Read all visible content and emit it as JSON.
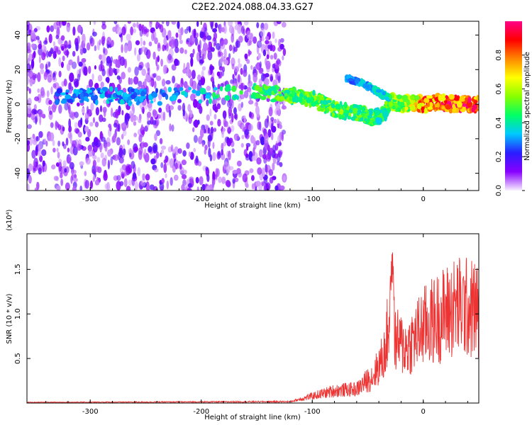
{
  "title": "C2E2.2024.088.04.33.G27",
  "chart_data": [
    {
      "type": "heatmap",
      "xlabel": "Height of straight line (km)",
      "ylabel": "Frequency (Hz)",
      "xlim": [
        -357,
        50
      ],
      "ylim": [
        -50,
        48
      ],
      "x_ticks": [
        -300,
        -200,
        -100,
        0
      ],
      "x_tick_labels": [
        "-300",
        "-200",
        "-100",
        "0"
      ],
      "y_ticks": [
        -40,
        -20,
        0,
        20,
        40
      ],
      "y_tick_labels": [
        "-40",
        "-20",
        "0",
        "20",
        "40"
      ],
      "colorbar": {
        "label": "Normalized spectral amplitude",
        "range": [
          0,
          1
        ],
        "ticks": [
          0.0,
          0.2,
          0.4,
          0.6,
          0.8
        ],
        "tick_labels": [
          "0.0",
          "0.2",
          "0.4",
          "0.6",
          "0.8"
        ],
        "colors": [
          "#f8f0ff",
          "#8800ff",
          "#2a1cff",
          "#00c8ff",
          "#00ff66",
          "#88ff00",
          "#ffff00",
          "#ff8800",
          "#ff0000",
          "#ff0088"
        ]
      },
      "ridge": [
        {
          "x": -330,
          "f": 5,
          "a": 0.3
        },
        {
          "x": -280,
          "f": 5,
          "a": 0.35
        },
        {
          "x": -250,
          "f": 4,
          "a": 0.3
        },
        {
          "x": -150,
          "f": 7,
          "a": 0.5
        },
        {
          "x": -120,
          "f": 5,
          "a": 0.55
        },
        {
          "x": -100,
          "f": 3,
          "a": 0.55
        },
        {
          "x": -80,
          "f": -3,
          "a": 0.55
        },
        {
          "x": -60,
          "f": -5,
          "a": 0.55
        },
        {
          "x": -45,
          "f": -8,
          "a": 0.5
        },
        {
          "x": -35,
          "f": -6,
          "a": 0.45
        },
        {
          "x": -30,
          "f": 2,
          "a": 0.6
        },
        {
          "x": -20,
          "f": 0,
          "a": 0.6
        },
        {
          "x": -10,
          "f": 1,
          "a": 0.65
        },
        {
          "x": 0,
          "f": 0,
          "a": 0.85
        },
        {
          "x": 15,
          "f": 1,
          "a": 0.9
        },
        {
          "x": 30,
          "f": 0,
          "a": 0.95
        },
        {
          "x": 50,
          "f": 0,
          "a": 0.95
        }
      ],
      "secondary_branch": [
        {
          "x": -70,
          "f": 15,
          "a": 0.3
        },
        {
          "x": -55,
          "f": 12,
          "a": 0.35
        },
        {
          "x": -40,
          "f": 7,
          "a": 0.4
        },
        {
          "x": -30,
          "f": 3,
          "a": 0.45
        }
      ]
    },
    {
      "type": "line",
      "xlabel": "Height of straight line (km)",
      "ylabel": "SNR (10 * v/v)",
      "y_multiplier_label": "(x10⁴)",
      "xlim": [
        -357,
        50
      ],
      "ylim": [
        0,
        1.9
      ],
      "x_ticks": [
        -300,
        -200,
        -100,
        0
      ],
      "x_tick_labels": [
        "-300",
        "-200",
        "-100",
        "0"
      ],
      "y_ticks": [
        0.5,
        1.0,
        1.5
      ],
      "y_tick_labels": [
        "0.5",
        "1.0",
        "1.5"
      ],
      "color": "#ee3333",
      "envelope": [
        {
          "x": -357,
          "y": 0.01
        },
        {
          "x": -120,
          "y": 0.02
        },
        {
          "x": -100,
          "y": 0.1
        },
        {
          "x": -80,
          "y": 0.18
        },
        {
          "x": -60,
          "y": 0.2
        },
        {
          "x": -45,
          "y": 0.4
        },
        {
          "x": -35,
          "y": 0.7
        },
        {
          "x": -28,
          "y": 1.5
        },
        {
          "x": -25,
          "y": 0.9
        },
        {
          "x": -15,
          "y": 0.8
        },
        {
          "x": 0,
          "y": 1.1
        },
        {
          "x": 15,
          "y": 1.25
        },
        {
          "x": 30,
          "y": 1.4
        },
        {
          "x": 50,
          "y": 1.35
        }
      ]
    }
  ]
}
